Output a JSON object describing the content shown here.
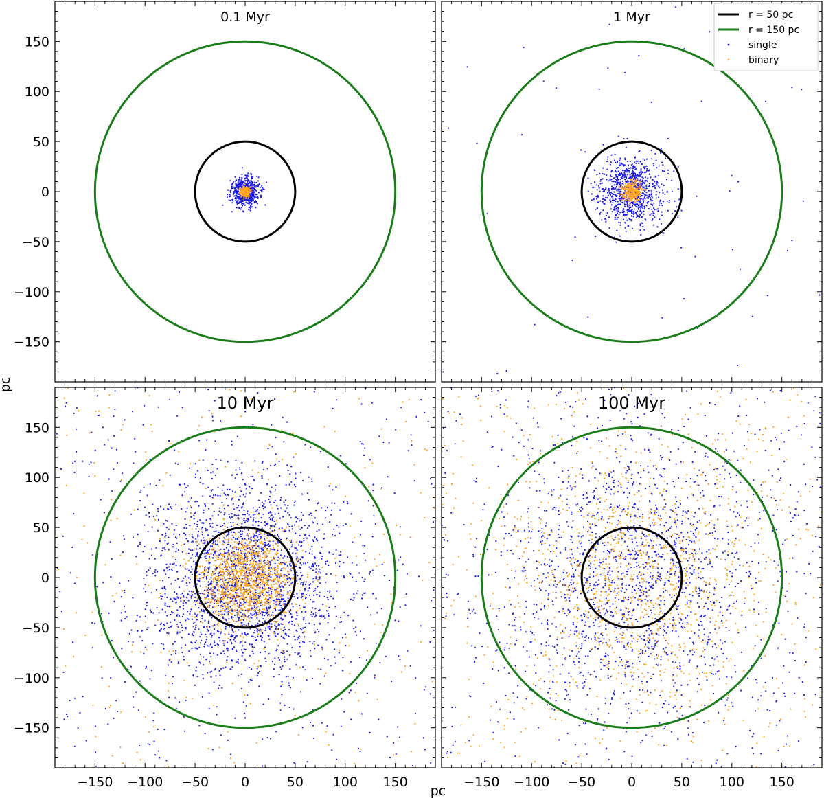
{
  "chart_data": {
    "type": "scatter",
    "xlabel": "pc",
    "ylabel": "pc",
    "xlim": [
      -190,
      190
    ],
    "ylim": [
      -190,
      190
    ],
    "ticks": [
      -150,
      -100,
      -50,
      0,
      50,
      100,
      150
    ],
    "tick_labels": [
      "−150",
      "−100",
      "−50",
      "0",
      "50",
      "100",
      "150"
    ],
    "legend": {
      "location": "top-right of panel 2",
      "entries": [
        {
          "label": "r = 50  pc",
          "kind": "line",
          "color": "#000000"
        },
        {
          "label": "r = 150  pc",
          "kind": "line",
          "color": "#1a7d1a"
        },
        {
          "label": "single",
          "kind": "dot",
          "color": "#1f1fe6"
        },
        {
          "label": "binary",
          "kind": "dot",
          "color": "#ffa520"
        }
      ]
    },
    "circles": [
      {
        "name": "r = 50  pc",
        "radius": 50,
        "color": "#000000"
      },
      {
        "name": "r = 150  pc",
        "radius": 150,
        "color": "#1a7d1a"
      }
    ],
    "panels": [
      {
        "title": "0.1 Myr",
        "single": {
          "count": 700,
          "scale": 7,
          "halo": 0.0
        },
        "binary": {
          "count": 230,
          "scale": 2.6,
          "halo": 0.0
        }
      },
      {
        "title": "1 Myr",
        "single": {
          "count": 950,
          "scale": 17,
          "halo": 0.07
        },
        "binary": {
          "count": 300,
          "scale": 5,
          "halo": 0.0
        }
      },
      {
        "title": "10 Myr",
        "single": {
          "count": 2700,
          "scale": 50,
          "halo": 0.15
        },
        "binary": {
          "count": 1500,
          "scale": 24,
          "halo": 0.15
        }
      },
      {
        "title": "100 Myr",
        "single": {
          "count": 2000,
          "scale": 68,
          "halo": 0.25
        },
        "binary": {
          "count": 1300,
          "scale": 58,
          "halo": 0.3
        }
      }
    ]
  }
}
